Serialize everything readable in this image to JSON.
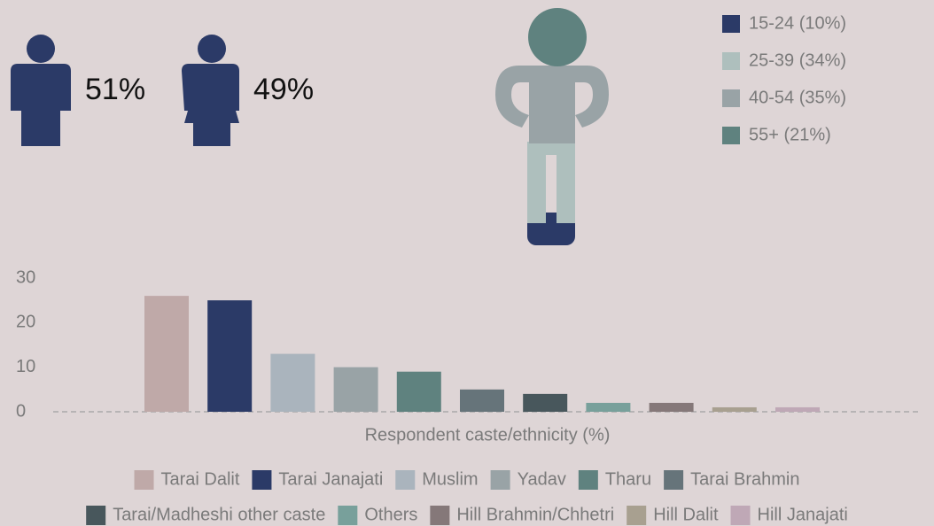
{
  "chart_data": [
    {
      "type": "pictogram",
      "values": [
        51,
        49
      ],
      "value_labels": [
        "51%",
        "49%"
      ],
      "color": "#2b3a67"
    },
    {
      "type": "pictogram",
      "categories": [
        "15-24 (10%)",
        "25-39 (34%)",
        "40-54 (35%)",
        "55+ (21%)"
      ],
      "values": [
        10,
        34,
        35,
        21
      ],
      "colors": [
        "#2b3a67",
        "#aebfbd",
        "#99a3a6",
        "#5f827f"
      ]
    },
    {
      "type": "bar",
      "xlabel": "Respondent caste/ethnicity (%)",
      "categories": [
        "Tarai Dalit",
        "Tarai Janajati",
        "Muslim",
        "Yadav",
        "Tharu",
        "Tarai Brahmin",
        "Tarai/Madheshi other caste",
        "Others",
        "Hill Brahmin/Chhetri",
        "Hill Dalit",
        "Hill Janajati"
      ],
      "values": [
        26,
        25,
        13,
        10,
        9,
        5,
        4,
        2,
        2,
        1,
        1
      ],
      "colors": [
        "#bfa9a8",
        "#2b3a67",
        "#aab4bd",
        "#99a3a6",
        "#5f827f",
        "#66747a",
        "#48575c",
        "#78a09b",
        "#857879",
        "#a8a090",
        "#bfa8b6"
      ],
      "ylim": [
        0,
        30
      ],
      "yticks": [
        0,
        10,
        20,
        30
      ]
    }
  ]
}
